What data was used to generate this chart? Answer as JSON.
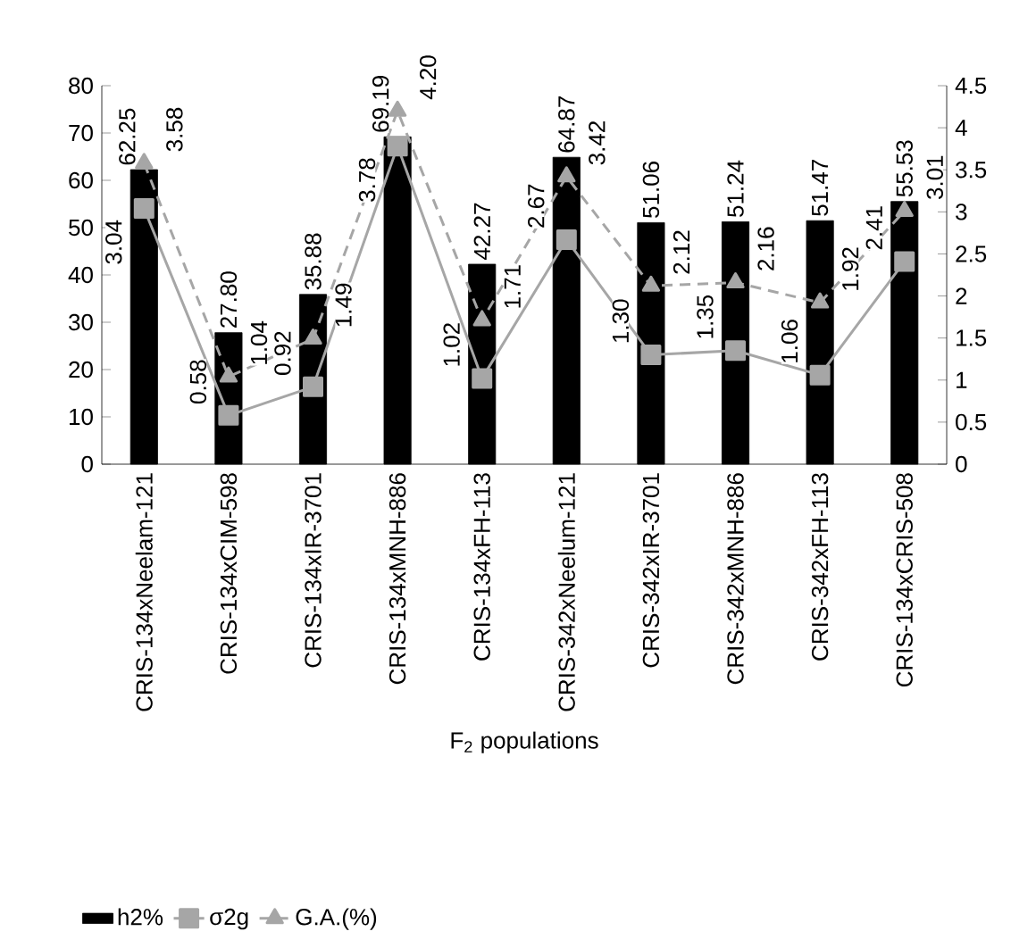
{
  "chart_data": {
    "type": "bar",
    "xlabel": "F$_{2}$ populations",
    "categories": [
      "CRIS-134xNeelam-121",
      "CRIS-134xCIM-598",
      "CRIS-134xIR-3701",
      "CRIS-134xMNH-886",
      "CRIS-134xFH-113",
      "CRIS-342xNeelum-121",
      "CRIS-342xIR-3701",
      "CRIS-342xMNH-886",
      "CRIS-342xFH-113",
      "CRIS-134xCRIS-508"
    ],
    "series": [
      {
        "name": "h2%",
        "color": "#000000",
        "values": [
          62.25,
          27.8,
          35.88,
          69.19,
          42.27,
          64.87,
          51.06,
          51.24,
          51.47,
          55.53
        ],
        "value_labels": [
          "62.25",
          "27.80",
          "35.88",
          "69.19",
          "42.27",
          "64.87",
          "51.06",
          "51.24",
          "51.47",
          "55.53"
        ]
      },
      {
        "name": "σ2g",
        "type": "line",
        "axis": "y2",
        "color": "#a6a6a6",
        "marker": "square",
        "line_style": "solid",
        "values": [
          3.04,
          0.58,
          0.92,
          3.78,
          1.02,
          2.67,
          1.3,
          1.35,
          1.06,
          2.41
        ],
        "value_labels": [
          "3.04",
          "0.58",
          "0.92",
          "3.78",
          "1.02",
          "2.67",
          "1.30",
          "1.35",
          "1.06",
          "2.41"
        ]
      },
      {
        "name": "G.A.(%)",
        "type": "line",
        "axis": "y2",
        "color": "#a6a6a6",
        "marker": "triangle",
        "line_style": "dashed",
        "values": [
          3.58,
          1.04,
          1.49,
          4.2,
          1.71,
          3.42,
          2.12,
          2.16,
          1.92,
          3.01
        ],
        "value_labels": [
          "3.58",
          "1.04",
          "1.49",
          "4.20",
          "1.71",
          "3.42",
          "2.12",
          "2.16",
          "1.92",
          "3.01"
        ]
      }
    ],
    "ylim": [
      0,
      80
    ],
    "yticks": [
      0,
      10,
      20,
      30,
      40,
      50,
      60,
      70,
      80
    ],
    "y2lim": [
      0,
      4.5
    ],
    "y2ticks": [
      0,
      0.5,
      1,
      1.5,
      2,
      2.5,
      3,
      3.5,
      4,
      4.5
    ],
    "grid": false,
    "legend": "bottom left"
  }
}
